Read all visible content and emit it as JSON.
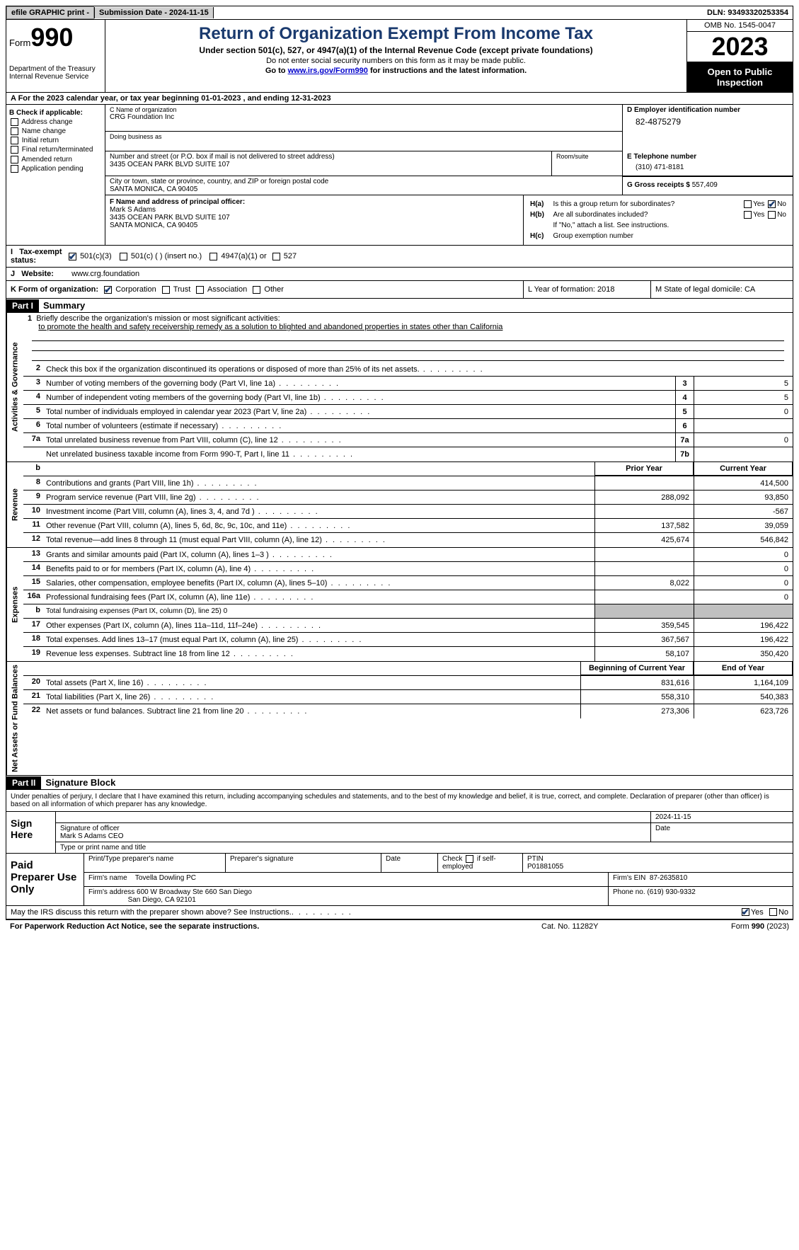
{
  "topbar": {
    "efile": "efile GRAPHIC print -",
    "submission": "Submission Date - 2024-11-15",
    "dln": "DLN: 93493320253354"
  },
  "header": {
    "form_prefix": "Form",
    "form_num": "990",
    "dept": "Department of the Treasury Internal Revenue Service",
    "title": "Return of Organization Exempt From Income Tax",
    "sub1": "Under section 501(c), 527, or 4947(a)(1) of the Internal Revenue Code (except private foundations)",
    "sub2": "Do not enter social security numbers on this form as it may be made public.",
    "sub3_pre": "Go to ",
    "sub3_link": "www.irs.gov/Form990",
    "sub3_post": " for instructions and the latest information.",
    "omb": "OMB No. 1545-0047",
    "year": "2023",
    "open": "Open to Public Inspection"
  },
  "rowA": "A For the 2023 calendar year, or tax year beginning 01-01-2023   , and ending 12-31-2023",
  "boxB": {
    "title": "B Check if applicable:",
    "items": [
      "Address change",
      "Name change",
      "Initial return",
      "Final return/terminated",
      "Amended return",
      "Application pending"
    ]
  },
  "boxC": {
    "name_lbl": "C Name of organization",
    "name": "CRG Foundation Inc",
    "dba_lbl": "Doing business as",
    "addr_lbl": "Number and street (or P.O. box if mail is not delivered to street address)",
    "addr": "3435 OCEAN PARK BLVD SUITE 107",
    "room_lbl": "Room/suite",
    "city_lbl": "City or town, state or province, country, and ZIP or foreign postal code",
    "city": "SANTA MONICA, CA  90405"
  },
  "boxD": {
    "lbl": "D Employer identification number",
    "val": "82-4875279"
  },
  "boxE": {
    "lbl": "E Telephone number",
    "val": "(310) 471-8181"
  },
  "boxG": {
    "lbl": "G Gross receipts $",
    "val": "557,409"
  },
  "boxF": {
    "lbl": "F  Name and address of principal officer:",
    "name": "Mark S Adams",
    "addr1": "3435 OCEAN PARK BLVD SUITE 107",
    "addr2": "SANTA MONICA, CA  90405"
  },
  "boxH": {
    "a": "Is this a group return for subordinates?",
    "b": "Are all subordinates included?",
    "note": "If \"No,\" attach a list. See instructions.",
    "c": "Group exemption number"
  },
  "boxI": {
    "lbl": "Tax-exempt status:",
    "opts": [
      "501(c)(3)",
      "501(c) (  ) (insert no.)",
      "4947(a)(1) or",
      "527"
    ]
  },
  "boxJ": {
    "lbl": "Website:",
    "val": "www.crg.foundation"
  },
  "boxK": {
    "lbl": "K Form of organization:",
    "opts": [
      "Corporation",
      "Trust",
      "Association",
      "Other"
    ]
  },
  "boxL": "L Year of formation: 2018",
  "boxM": "M State of legal domicile: CA",
  "part1": {
    "hdr": "Part I",
    "title": "Summary"
  },
  "mission": {
    "line1_lbl": "Briefly describe the organization's mission or most significant activities:",
    "text": "to promote the health and safety receivership remedy as a solution to blighted and abandoned properties in states other than California"
  },
  "lines_gov": [
    {
      "n": "2",
      "d": "Check this box     if the organization discontinued its operations or disposed of more than 25% of its net assets."
    },
    {
      "n": "3",
      "d": "Number of voting members of the governing body (Part VI, line 1a)",
      "box": "3",
      "v": "5"
    },
    {
      "n": "4",
      "d": "Number of independent voting members of the governing body (Part VI, line 1b)",
      "box": "4",
      "v": "5"
    },
    {
      "n": "5",
      "d": "Total number of individuals employed in calendar year 2023 (Part V, line 2a)",
      "box": "5",
      "v": "0"
    },
    {
      "n": "6",
      "d": "Total number of volunteers (estimate if necessary)",
      "box": "6",
      "v": ""
    },
    {
      "n": "7a",
      "d": "Total unrelated business revenue from Part VIII, column (C), line 12",
      "box": "7a",
      "v": "0"
    },
    {
      "n": "",
      "d": "Net unrelated business taxable income from Form 990-T, Part I, line 11",
      "box": "7b",
      "v": ""
    }
  ],
  "col_hdrs": {
    "prior": "Prior Year",
    "current": "Current Year",
    "boy": "Beginning of Current Year",
    "eoy": "End of Year"
  },
  "lines_rev": [
    {
      "n": "8",
      "d": "Contributions and grants (Part VIII, line 1h)",
      "p": "",
      "c": "414,500"
    },
    {
      "n": "9",
      "d": "Program service revenue (Part VIII, line 2g)",
      "p": "288,092",
      "c": "93,850"
    },
    {
      "n": "10",
      "d": "Investment income (Part VIII, column (A), lines 3, 4, and 7d )",
      "p": "",
      "c": "-567"
    },
    {
      "n": "11",
      "d": "Other revenue (Part VIII, column (A), lines 5, 6d, 8c, 9c, 10c, and 11e)",
      "p": "137,582",
      "c": "39,059"
    },
    {
      "n": "12",
      "d": "Total revenue—add lines 8 through 11 (must equal Part VIII, column (A), line 12)",
      "p": "425,674",
      "c": "546,842"
    }
  ],
  "lines_exp": [
    {
      "n": "13",
      "d": "Grants and similar amounts paid (Part IX, column (A), lines 1–3 )",
      "p": "",
      "c": "0"
    },
    {
      "n": "14",
      "d": "Benefits paid to or for members (Part IX, column (A), line 4)",
      "p": "",
      "c": "0"
    },
    {
      "n": "15",
      "d": "Salaries, other compensation, employee benefits (Part IX, column (A), lines 5–10)",
      "p": "8,022",
      "c": "0"
    },
    {
      "n": "16a",
      "d": "Professional fundraising fees (Part IX, column (A), line 11e)",
      "p": "",
      "c": "0"
    },
    {
      "n": "b",
      "d": "Total fundraising expenses (Part IX, column (D), line 25) 0",
      "grey": true
    },
    {
      "n": "17",
      "d": "Other expenses (Part IX, column (A), lines 11a–11d, 11f–24e)",
      "p": "359,545",
      "c": "196,422"
    },
    {
      "n": "18",
      "d": "Total expenses. Add lines 13–17 (must equal Part IX, column (A), line 25)",
      "p": "367,567",
      "c": "196,422"
    },
    {
      "n": "19",
      "d": "Revenue less expenses. Subtract line 18 from line 12",
      "p": "58,107",
      "c": "350,420"
    }
  ],
  "lines_net": [
    {
      "n": "20",
      "d": "Total assets (Part X, line 16)",
      "p": "831,616",
      "c": "1,164,109"
    },
    {
      "n": "21",
      "d": "Total liabilities (Part X, line 26)",
      "p": "558,310",
      "c": "540,383"
    },
    {
      "n": "22",
      "d": "Net assets or fund balances. Subtract line 21 from line 20",
      "p": "273,306",
      "c": "623,726"
    }
  ],
  "part2": {
    "hdr": "Part II",
    "title": "Signature Block"
  },
  "sig": {
    "decl": "Under penalties of perjury, I declare that I have examined this return, including accompanying schedules and statements, and to the best of my knowledge and belief, it is true, correct, and complete. Declaration of preparer (other than officer) is based on all information of which preparer has any knowledge.",
    "sign_here": "Sign Here",
    "date": "2024-11-15",
    "sig_lbl": "Signature of officer",
    "officer": "Mark S Adams  CEO",
    "type_lbl": "Type or print name and title",
    "date_lbl": "Date"
  },
  "prep": {
    "title": "Paid Preparer Use Only",
    "h1": "Print/Type preparer's name",
    "h2": "Preparer's signature",
    "h3": "Date",
    "h4": "Check      if self-employed",
    "h5": "PTIN",
    "ptin": "P01881055",
    "firm_lbl": "Firm's name",
    "firm": "Tovella Dowling PC",
    "ein_lbl": "Firm's EIN",
    "ein": "87-2635810",
    "addr_lbl": "Firm's address",
    "addr1": "600 W Broadway Ste 660 San Diego",
    "addr2": "San Diego, CA  92101",
    "phone_lbl": "Phone no.",
    "phone": "(619) 930-9332"
  },
  "discuss": "May the IRS discuss this return with the preparer shown above? See Instructions.",
  "footer": {
    "left": "For Paperwork Reduction Act Notice, see the separate instructions.",
    "mid": "Cat. No. 11282Y",
    "right_pre": "Form ",
    "right_form": "990",
    "right_post": " (2023)"
  },
  "yesno": {
    "yes": "Yes",
    "no": "No"
  },
  "side_labels": {
    "gov": "Activities & Governance",
    "rev": "Revenue",
    "exp": "Expenses",
    "net": "Net Assets or Fund Balances"
  }
}
